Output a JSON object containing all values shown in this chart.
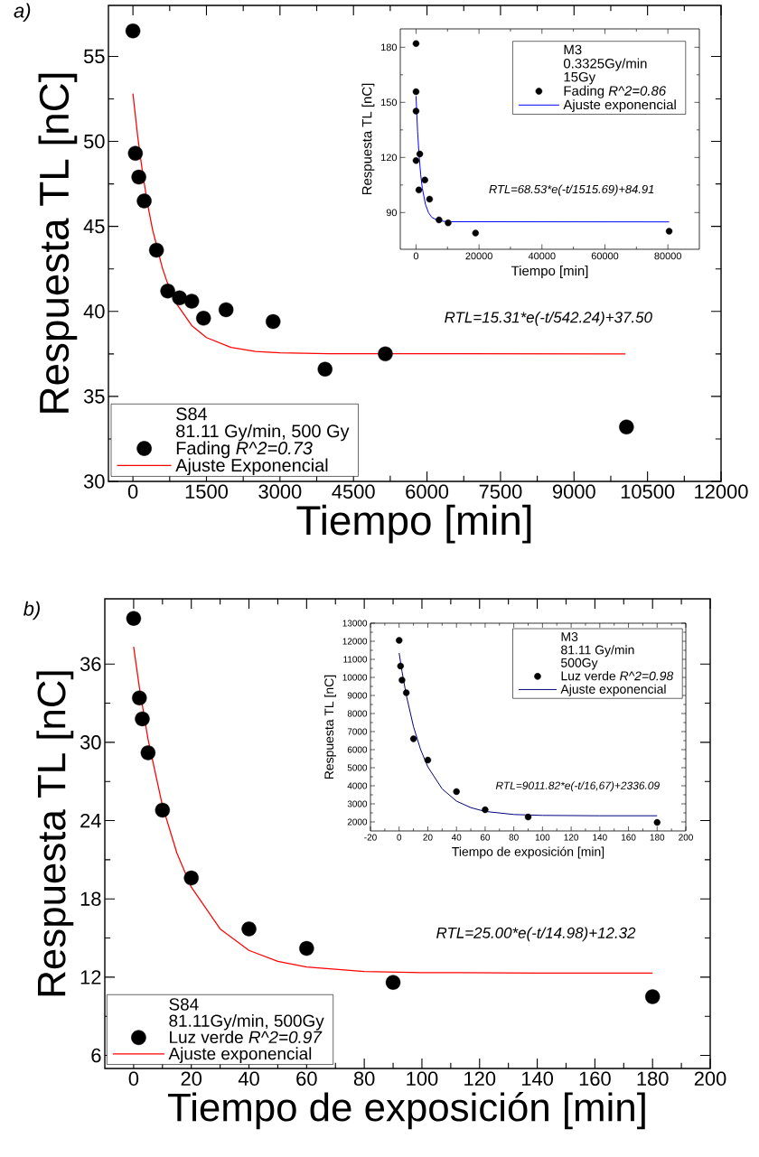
{
  "chart_data": [
    {
      "type": "scatter",
      "title": "a)",
      "xlabel": "Tiempo [min]",
      "ylabel": "Respuesta TL [nC]",
      "legend_title": "S84",
      "annotations": [
        "81.11 Gy/min, 500 Gy",
        "RTL=15.31*e(-t/542.24)+37.50"
      ],
      "xlim": [
        -500,
        12000
      ],
      "ylim": [
        30,
        58
      ],
      "xticks": [
        0,
        1500,
        3000,
        4500,
        6000,
        7500,
        9000,
        10500,
        12000
      ],
      "yticks": [
        30,
        35,
        40,
        45,
        50,
        55
      ],
      "legend": "bottom left",
      "series": [
        {
          "name": "Fading *R^2=0.73*",
          "marker": "circle",
          "color": "#000000",
          "x": [
            0,
            50,
            120,
            230,
            480,
            710,
            950,
            1200,
            1440,
            1900,
            2860,
            3920,
            5150,
            10070
          ],
          "values": [
            56.5,
            49.3,
            47.9,
            46.5,
            43.6,
            41.2,
            40.8,
            40.6,
            39.6,
            40.1,
            39.4,
            36.6,
            37.5,
            33.2
          ]
        },
        {
          "name": "Ajuste Exponencial",
          "type": "line",
          "line_style": "solid",
          "color": "#ff0000",
          "x": [
            0,
            100,
            200,
            300,
            400,
            600,
            700,
            900,
            1200,
            1500,
            2000,
            2500,
            3000,
            4000,
            10050
          ],
          "values": [
            52.81,
            50.23,
            48.09,
            46.3,
            44.82,
            42.56,
            41.71,
            40.41,
            39.17,
            38.46,
            37.88,
            37.65,
            37.56,
            37.51,
            37.5
          ]
        }
      ]
    },
    {
      "type": "scatter",
      "xlabel": "Tiempo [min]",
      "ylabel": "Respuesta TL [nC]",
      "legend_title": "M3",
      "annotations": [
        "0.3325Gy/min",
        "15Gy",
        "RTL=68.53*e(-t/1515.69)+84.91"
      ],
      "xlim": [
        -5000,
        90000
      ],
      "ylim": [
        70,
        190
      ],
      "xticks": [
        0,
        20000,
        40000,
        60000,
        80000
      ],
      "yticks": [
        90,
        120,
        150,
        180
      ],
      "legend": "top right",
      "series": [
        {
          "name": "Fading *R^2=0.86*",
          "marker": "circle",
          "color": "#000000",
          "x": [
            0,
            0,
            0,
            0,
            900,
            1200,
            2800,
            4300,
            7300,
            10200,
            18900,
            80400
          ],
          "values": [
            182.0,
            155.8,
            145.2,
            118.3,
            102.3,
            121.9,
            107.7,
            97.3,
            86.0,
            84.4,
            78.8,
            79.8
          ]
        },
        {
          "name": "Ajuste exponencial",
          "type": "line",
          "line_style": "solid",
          "color": "#0000ff",
          "x": [
            0,
            500,
            1000,
            1500,
            2000,
            3000,
            4000,
            5000,
            7000,
            10000,
            80400
          ],
          "values": [
            153.4,
            134.2,
            120.3,
            110.4,
            103.2,
            94.4,
            89.8,
            87.4,
            85.6,
            85.0,
            84.9
          ]
        }
      ]
    },
    {
      "type": "scatter",
      "title": "b)",
      "xlabel": "Tiempo de exposición [min]",
      "ylabel": "Respuesta TL [nC]",
      "legend_title": "S84",
      "annotations": [
        "81.11Gy/min, 500Gy",
        "RTL=25.00*e(-t/14.98)+12.32"
      ],
      "xlim": [
        -10,
        200
      ],
      "ylim": [
        5,
        41
      ],
      "xticks": [
        0,
        20,
        40,
        60,
        80,
        100,
        120,
        140,
        160,
        180,
        200
      ],
      "yticks": [
        6,
        12,
        18,
        24,
        30,
        36
      ],
      "legend": "bottom left",
      "series": [
        {
          "name": "Luz verde *R^2=0.97*",
          "marker": "circle",
          "color": "#000000",
          "x": [
            0,
            2,
            3,
            5,
            10,
            20,
            40,
            60,
            90,
            180
          ],
          "values": [
            39.5,
            33.4,
            31.8,
            29.2,
            24.8,
            19.6,
            15.7,
            14.2,
            11.6,
            10.5
          ]
        },
        {
          "name": "Ajuste exponencial",
          "type": "line",
          "line_style": "solid",
          "color": "#ff0000",
          "x": [
            0,
            2,
            5,
            10,
            15,
            20,
            30,
            40,
            50,
            60,
            80,
            100,
            140,
            180
          ],
          "values": [
            37.32,
            34.19,
            30.23,
            25.14,
            21.51,
            18.9,
            15.7,
            14.05,
            13.21,
            12.78,
            12.44,
            12.35,
            12.32,
            12.32
          ]
        }
      ]
    },
    {
      "type": "scatter",
      "xlabel": "Tiempo de exposición [min]",
      "ylabel": "Respuesta TL [nC]",
      "legend_title": "M3",
      "annotations": [
        "81.11 Gy/min",
        "500Gy",
        "RTL=9011.82*e(-t/16,67)+2336.09"
      ],
      "xlim": [
        -20,
        200
      ],
      "ylim": [
        1500,
        13000
      ],
      "xticks": [
        -20,
        0,
        20,
        40,
        60,
        80,
        100,
        120,
        140,
        160,
        180,
        200
      ],
      "yticks": [
        2000,
        3000,
        4000,
        5000,
        6000,
        7000,
        8000,
        9000,
        10000,
        11000,
        12000,
        13000
      ],
      "legend": "top right",
      "series": [
        {
          "name": "Luz verde *R^2=0.98*",
          "marker": "circle",
          "color": "#000000",
          "x": [
            0,
            1,
            2,
            5,
            10,
            20,
            40,
            60,
            90,
            180
          ],
          "values": [
            12050,
            10630,
            9850,
            9150,
            6600,
            5420,
            3680,
            2670,
            2270,
            1970
          ]
        },
        {
          "name": "Ajuste exponencial",
          "type": "line",
          "line_style": "solid",
          "color": "#000080",
          "x": [
            0,
            2,
            5,
            10,
            15,
            20,
            30,
            40,
            50,
            60,
            80,
            100,
            140,
            180
          ],
          "values": [
            11350,
            10330,
            9010,
            7280,
            6000,
            5050,
            3830,
            3150,
            2790,
            2580,
            2410,
            2360,
            2340,
            2340
          ]
        }
      ]
    }
  ]
}
